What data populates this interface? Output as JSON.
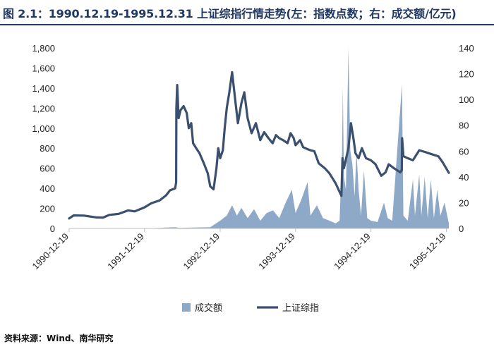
{
  "header": {
    "title": "图 2.1：1990.12.19-1995.12.31 上证综指行情走势(左：指数点数；右：成交额/亿元)"
  },
  "footer": {
    "source": "资料来源：Wind、南华研究"
  },
  "colors": {
    "line": "#3b4f6e",
    "volume": "#8ea9c8",
    "title": "#1f3864"
  },
  "chart_data": {
    "type": "line",
    "x_range": [
      "1990-12-19",
      "1995-12-31"
    ],
    "x_tick_labels": [
      "1990-12-19",
      "1991-12-19",
      "1992-12-19",
      "1993-12-19",
      "1994-12-19",
      "1995-12-19"
    ],
    "y_left": {
      "min": 0,
      "max": 1800,
      "tick_labels": [
        "0",
        "200",
        "400",
        "600",
        "800",
        "1,000",
        "1,200",
        "1,400",
        "1,600",
        "1,800"
      ]
    },
    "y_right": {
      "min": 0,
      "max": 140,
      "tick_labels": [
        "0",
        "20",
        "40",
        "60",
        "80",
        "100",
        "120",
        "140"
      ]
    },
    "grid": false,
    "legend_position": "bottom",
    "series": [
      {
        "name": "成交额",
        "type": "area",
        "axis": "right",
        "points": [
          [
            "1990-12-19",
            0
          ],
          [
            "1991-12-19",
            0
          ],
          [
            "1992-05-15",
            1
          ],
          [
            "1992-06-01",
            0.5
          ],
          [
            "1992-11-01",
            1
          ],
          [
            "1992-12-19",
            6
          ],
          [
            "1993-01-20",
            10
          ],
          [
            "1993-02-15",
            18
          ],
          [
            "1993-03-10",
            10
          ],
          [
            "1993-04-01",
            16
          ],
          [
            "1993-05-01",
            8
          ],
          [
            "1993-06-01",
            15
          ],
          [
            "1993-07-01",
            6
          ],
          [
            "1993-08-01",
            12
          ],
          [
            "1993-09-01",
            14
          ],
          [
            "1993-10-01",
            8
          ],
          [
            "1993-11-01",
            20
          ],
          [
            "1993-12-01",
            30
          ],
          [
            "1993-12-19",
            12
          ],
          [
            "1994-01-15",
            22
          ],
          [
            "1994-02-15",
            36
          ],
          [
            "1994-03-01",
            10
          ],
          [
            "1994-04-01",
            18
          ],
          [
            "1994-05-01",
            8
          ],
          [
            "1994-06-01",
            6
          ],
          [
            "1994-07-01",
            4
          ],
          [
            "1994-07-20",
            6
          ],
          [
            "1994-08-01",
            60
          ],
          [
            "1994-08-05",
            110
          ],
          [
            "1994-08-10",
            40
          ],
          [
            "1994-08-20",
            30
          ],
          [
            "1994-09-01",
            140
          ],
          [
            "1994-09-10",
            60
          ],
          [
            "1994-09-20",
            50
          ],
          [
            "1994-10-01",
            25
          ],
          [
            "1994-10-10",
            60
          ],
          [
            "1994-10-20",
            30
          ],
          [
            "1994-11-01",
            10
          ],
          [
            "1994-11-15",
            45
          ],
          [
            "1994-12-01",
            8
          ],
          [
            "1994-12-19",
            6
          ],
          [
            "1995-01-20",
            5
          ],
          [
            "1995-02-20",
            20
          ],
          [
            "1995-03-10",
            8
          ],
          [
            "1995-04-01",
            6
          ],
          [
            "1995-05-18",
            112
          ],
          [
            "1995-05-25",
            10
          ],
          [
            "1995-06-15",
            6
          ],
          [
            "1995-07-10",
            38
          ],
          [
            "1995-07-20",
            10
          ],
          [
            "1995-08-10",
            42
          ],
          [
            "1995-08-20",
            10
          ],
          [
            "1995-09-05",
            40
          ],
          [
            "1995-09-20",
            8
          ],
          [
            "1995-10-05",
            38
          ],
          [
            "1995-10-20",
            8
          ],
          [
            "1995-11-05",
            30
          ],
          [
            "1995-11-20",
            10
          ],
          [
            "1995-12-10",
            20
          ],
          [
            "1995-12-31",
            4
          ]
        ]
      },
      {
        "name": "上证综指",
        "type": "line",
        "axis": "left",
        "points": [
          [
            "1990-12-19",
            100
          ],
          [
            "1991-01-10",
            130
          ],
          [
            "1991-03-01",
            128
          ],
          [
            "1991-05-01",
            110
          ],
          [
            "1991-06-01",
            108
          ],
          [
            "1991-07-01",
            135
          ],
          [
            "1991-08-15",
            145
          ],
          [
            "1991-10-01",
            180
          ],
          [
            "1991-11-01",
            170
          ],
          [
            "1991-12-19",
            210
          ],
          [
            "1992-01-20",
            250
          ],
          [
            "1992-03-01",
            280
          ],
          [
            "1992-04-01",
            330
          ],
          [
            "1992-04-20",
            380
          ],
          [
            "1992-05-15",
            400
          ],
          [
            "1992-05-20",
            460
          ],
          [
            "1992-05-21",
            1200
          ],
          [
            "1992-05-25",
            1430
          ],
          [
            "1992-06-01",
            1100
          ],
          [
            "1992-06-10",
            1180
          ],
          [
            "1992-06-25",
            1220
          ],
          [
            "1992-07-10",
            1150
          ],
          [
            "1992-07-20",
            1000
          ],
          [
            "1992-08-01",
            1050
          ],
          [
            "1992-08-10",
            850
          ],
          [
            "1992-08-25",
            800
          ],
          [
            "1992-09-10",
            750
          ],
          [
            "1992-10-01",
            650
          ],
          [
            "1992-10-20",
            550
          ],
          [
            "1992-11-01",
            420
          ],
          [
            "1992-11-17",
            390
          ],
          [
            "1992-12-01",
            600
          ],
          [
            "1992-12-10",
            800
          ],
          [
            "1992-12-19",
            700
          ],
          [
            "1993-01-01",
            780
          ],
          [
            "1993-01-10",
            1000
          ],
          [
            "1993-01-20",
            1200
          ],
          [
            "1993-02-01",
            1350
          ],
          [
            "1993-02-15",
            1558
          ],
          [
            "1993-03-01",
            1300
          ],
          [
            "1993-03-15",
            1050
          ],
          [
            "1993-04-01",
            1250
          ],
          [
            "1993-04-15",
            1358
          ],
          [
            "1993-05-01",
            1100
          ],
          [
            "1993-05-20",
            950
          ],
          [
            "1993-06-10",
            1050
          ],
          [
            "1993-07-01",
            880
          ],
          [
            "1993-07-20",
            960
          ],
          [
            "1993-08-10",
            900
          ],
          [
            "1993-08-30",
            850
          ],
          [
            "1993-09-15",
            930
          ],
          [
            "1993-10-01",
            900
          ],
          [
            "1993-10-20",
            880
          ],
          [
            "1993-11-10",
            850
          ],
          [
            "1993-11-25",
            950
          ],
          [
            "1993-12-10",
            900
          ],
          [
            "1993-12-19",
            830
          ],
          [
            "1994-01-10",
            880
          ],
          [
            "1994-01-25",
            810
          ],
          [
            "1994-02-15",
            790
          ],
          [
            "1994-03-01",
            780
          ],
          [
            "1994-03-20",
            770
          ],
          [
            "1994-04-10",
            650
          ],
          [
            "1994-05-10",
            600
          ],
          [
            "1994-06-01",
            550
          ],
          [
            "1994-07-01",
            450
          ],
          [
            "1994-07-29",
            325
          ],
          [
            "1994-08-03",
            700
          ],
          [
            "1994-08-10",
            600
          ],
          [
            "1994-09-01",
            800
          ],
          [
            "1994-09-13",
            1050
          ],
          [
            "1994-09-25",
            900
          ],
          [
            "1994-10-05",
            750
          ],
          [
            "1994-10-20",
            700
          ],
          [
            "1994-11-05",
            800
          ],
          [
            "1994-11-25",
            700
          ],
          [
            "1994-12-19",
            680
          ],
          [
            "1995-01-10",
            640
          ],
          [
            "1995-02-07",
            525
          ],
          [
            "1995-02-28",
            560
          ],
          [
            "1995-03-15",
            640
          ],
          [
            "1995-04-10",
            600
          ],
          [
            "1995-05-10",
            560
          ],
          [
            "1995-05-17",
            580
          ],
          [
            "1995-05-19",
            900
          ],
          [
            "1995-05-25",
            720
          ],
          [
            "1995-06-15",
            700
          ],
          [
            "1995-07-10",
            680
          ],
          [
            "1995-08-10",
            780
          ],
          [
            "1995-09-10",
            760
          ],
          [
            "1995-10-10",
            740
          ],
          [
            "1995-11-10",
            720
          ],
          [
            "1995-12-01",
            660
          ],
          [
            "1995-12-31",
            555
          ]
        ]
      }
    ],
    "legend": [
      {
        "label": "成交额",
        "marker": "square"
      },
      {
        "label": "上证综指",
        "marker": "line"
      }
    ]
  }
}
